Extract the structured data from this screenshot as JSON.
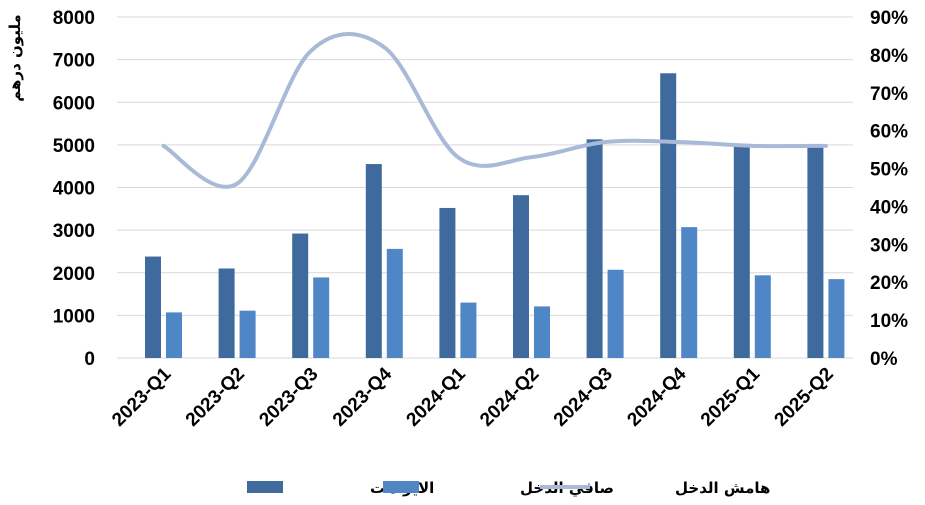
{
  "chart_data": {
    "type": "bar",
    "categories": [
      "2023-Q1",
      "2023-Q2",
      "2023-Q3",
      "2023-Q4",
      "2024-Q1",
      "2024-Q2",
      "2024-Q3",
      "2024-Q4",
      "2025-Q1",
      "2025-Q2"
    ],
    "ylabel": "مليون درهم",
    "ylim": [
      0,
      8000
    ],
    "yticks": [
      "0",
      "1000",
      "2000",
      "3000",
      "4000",
      "5000",
      "6000",
      "7000",
      "8000"
    ],
    "y2lim": [
      0,
      90
    ],
    "y2ticks": [
      "0%",
      "10%",
      "20%",
      "30%",
      "40%",
      "50%",
      "60%",
      "70%",
      "80%",
      "90%"
    ],
    "grid": true,
    "legend_position": "bottom",
    "series": [
      {
        "name": "الايرادات",
        "type": "bar",
        "axis": "left",
        "color": "#3F6A9E",
        "values": [
          2380,
          2100,
          2920,
          4550,
          3520,
          3820,
          5130,
          6680,
          5020,
          4950
        ]
      },
      {
        "name": "صافي الدخل",
        "type": "bar",
        "axis": "left",
        "color": "#4F86C6",
        "values": [
          1070,
          1110,
          1890,
          2560,
          1300,
          1210,
          2070,
          3070,
          1940,
          1850
        ]
      },
      {
        "name": "هامش الدخل",
        "type": "line",
        "axis": "right",
        "color": "#A9B9D8",
        "values": [
          56,
          46,
          81,
          82,
          53,
          53,
          57,
          57,
          56,
          56
        ]
      }
    ]
  }
}
